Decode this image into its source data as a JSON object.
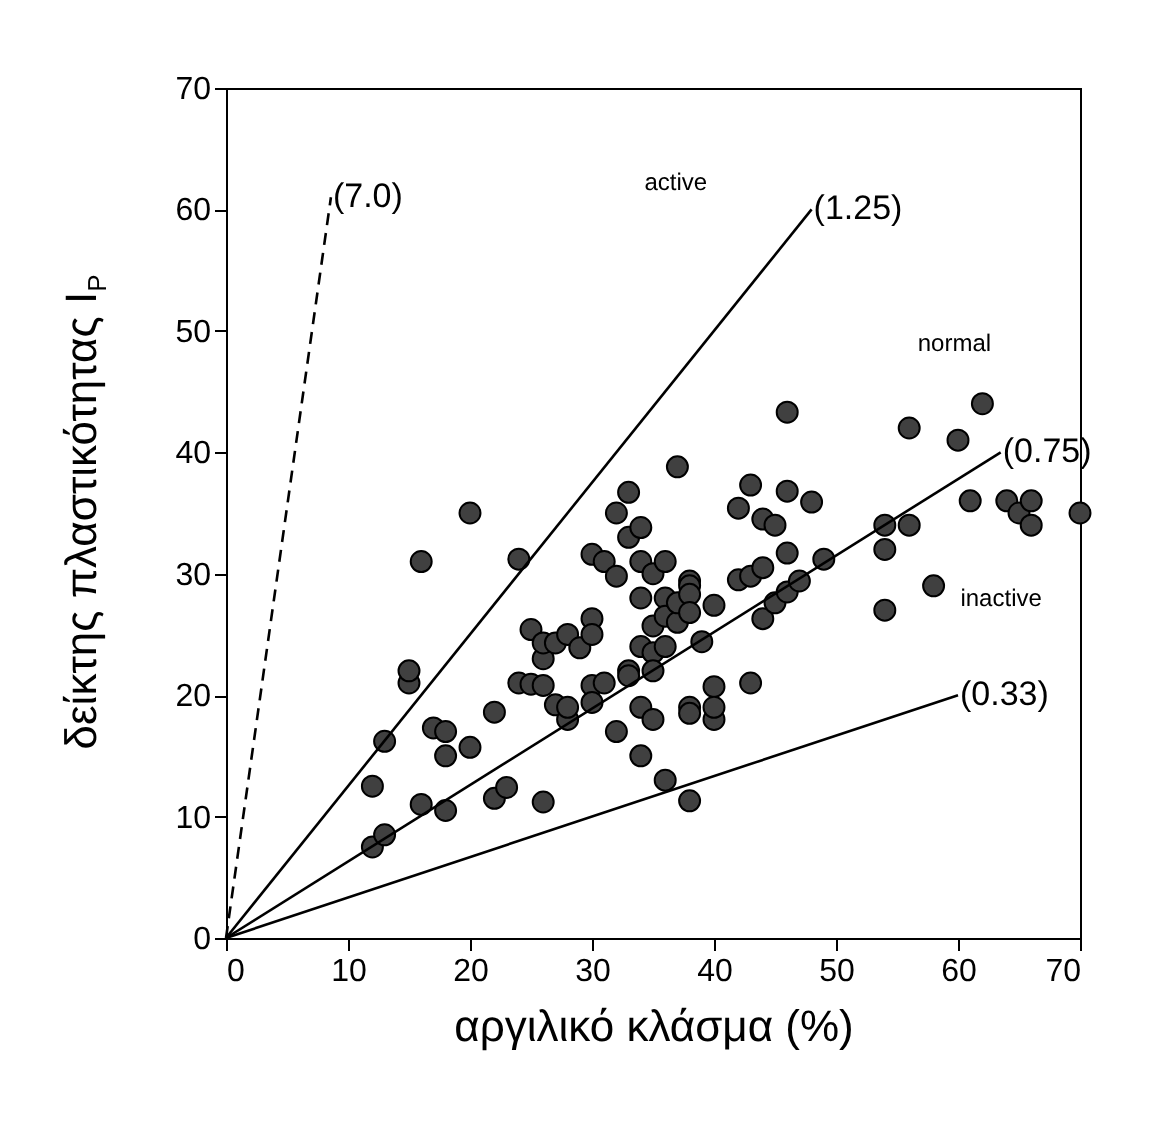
{
  "chart_data": {
    "type": "scatter",
    "xlabel": "αργιλικό κλάσμα (%)",
    "ylabel": "δείκτης πλαστικότητας I$_{P}$",
    "xlim": [
      0,
      70
    ],
    "ylim": [
      0,
      70
    ],
    "xticks": [
      0,
      10,
      20,
      30,
      40,
      50,
      60,
      70
    ],
    "yticks": [
      0,
      10,
      20,
      30,
      40,
      50,
      60,
      70
    ],
    "grid": false,
    "series": [
      {
        "color": "#404040",
        "marker": "circle",
        "x": [
          12,
          12,
          13,
          13,
          15,
          15,
          16,
          16,
          17,
          18,
          18,
          18,
          20,
          20,
          22,
          22,
          23,
          24,
          24,
          25,
          25,
          26,
          26,
          26,
          26,
          27,
          27,
          28,
          28,
          28,
          29,
          30,
          30,
          30,
          30,
          30,
          31,
          31,
          32,
          32,
          32,
          33,
          33,
          33,
          33,
          34,
          34,
          34,
          34,
          34,
          34,
          35,
          35,
          35,
          35,
          35,
          36,
          36,
          36,
          36,
          36,
          37,
          37,
          37,
          38,
          38,
          38,
          38,
          38,
          38,
          38,
          39,
          40,
          40,
          40,
          40,
          42,
          42,
          43,
          43,
          43,
          44,
          44,
          44,
          45,
          45,
          46,
          46,
          46,
          46,
          47,
          48,
          49,
          54,
          54,
          54,
          56,
          56,
          58,
          60,
          61,
          62,
          64,
          65,
          66,
          66,
          70
        ],
        "values": [
          7.5,
          12.5,
          8.5,
          16.2,
          21,
          22,
          31,
          11,
          17.3,
          15,
          17,
          10.5,
          35,
          15.7,
          11.5,
          18.6,
          12.4,
          31.2,
          21,
          25.4,
          20.9,
          20.8,
          23,
          11.2,
          24.3,
          19.2,
          24.3,
          25,
          18,
          19,
          23.9,
          31.6,
          26.3,
          25,
          20.8,
          19.4,
          31,
          21,
          35,
          29.8,
          17,
          36.7,
          33,
          22,
          21.6,
          33.8,
          31,
          28,
          24,
          19,
          15,
          30,
          23.5,
          25.7,
          22,
          18,
          28,
          26.5,
          24,
          13,
          31,
          38.8,
          26,
          27.6,
          29.4,
          29,
          28.3,
          26.8,
          19,
          18.5,
          11.3,
          24.4,
          27.4,
          20.7,
          18,
          19,
          29.5,
          35.4,
          37.3,
          29.8,
          21,
          34.5,
          30.5,
          26.3,
          34,
          27.6,
          43.3,
          36.8,
          31.7,
          28.5,
          29.4,
          35.9,
          31.2,
          34,
          32,
          27,
          42,
          34,
          29,
          41,
          36,
          44,
          36,
          35,
          36,
          34,
          35
        ]
      },
      {
        "type": "line",
        "color": "#000000",
        "line_style": "dashed",
        "x": [
          0,
          8.6
        ],
        "values": [
          0,
          61
        ]
      },
      {
        "type": "line",
        "color": "#000000",
        "line_style": "solid",
        "x": [
          0,
          48
        ],
        "values": [
          0,
          60
        ]
      },
      {
        "type": "line",
        "color": "#000000",
        "line_style": "solid",
        "x": [
          0,
          63.5
        ],
        "values": [
          0,
          40
        ]
      },
      {
        "type": "line",
        "color": "#000000",
        "line_style": "solid",
        "x": [
          0,
          60
        ],
        "values": [
          0,
          20
        ]
      }
    ],
    "annotations": [
      {
        "text": "(7.0)",
        "x": 8.6,
        "y": 61
      },
      {
        "text": "(1.25)",
        "x": 48,
        "y": 60
      },
      {
        "text": "(0.75)",
        "x": 63.5,
        "y": 40
      },
      {
        "text": "(0.33)",
        "x": 60,
        "y": 20
      },
      "active",
      "normal",
      "inactive"
    ]
  }
}
